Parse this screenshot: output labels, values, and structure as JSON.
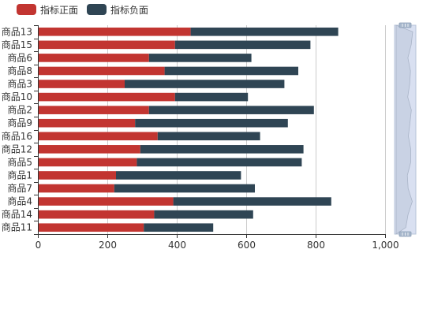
{
  "legend": [
    {
      "label": "指标正面",
      "color": "#c23531"
    },
    {
      "label": "指标负面",
      "color": "#2f4554"
    }
  ],
  "colors": {
    "axis": "#333333",
    "grid": "#cccccc",
    "zoom_fill": "#d2dbee",
    "zoom_border": "#b7c4d9",
    "zoom_handle": "#a7b7cc"
  },
  "chart_data": {
    "type": "bar",
    "orientation": "horizontal",
    "stacked": true,
    "categories": [
      "商品11",
      "商品14",
      "商品4",
      "商品7",
      "商品1",
      "商品5",
      "商品12",
      "商品16",
      "商品9",
      "商品2",
      "商品10",
      "商品3",
      "商品8",
      "商品6",
      "商品15",
      "商品13"
    ],
    "series": [
      {
        "name": "指标正面",
        "values": [
          305,
          335,
          390,
          220,
          225,
          285,
          295,
          345,
          280,
          320,
          395,
          250,
          365,
          320,
          395,
          440
        ]
      },
      {
        "name": "指标负面",
        "values": [
          200,
          285,
          455,
          405,
          360,
          475,
          470,
          295,
          440,
          475,
          210,
          460,
          385,
          295,
          390,
          425
        ]
      }
    ],
    "xlim": [
      0,
      1000
    ],
    "xticks": [
      0,
      200,
      400,
      600,
      800,
      1000
    ],
    "xtick_labels": [
      "0",
      "200",
      "400",
      "600",
      "800",
      "1,000"
    ],
    "grid": true,
    "legend_position": "top-left",
    "datazoom": {
      "type": "slider",
      "orient": "vertical",
      "position": "right",
      "range_percent": [
        0,
        100
      ]
    }
  }
}
